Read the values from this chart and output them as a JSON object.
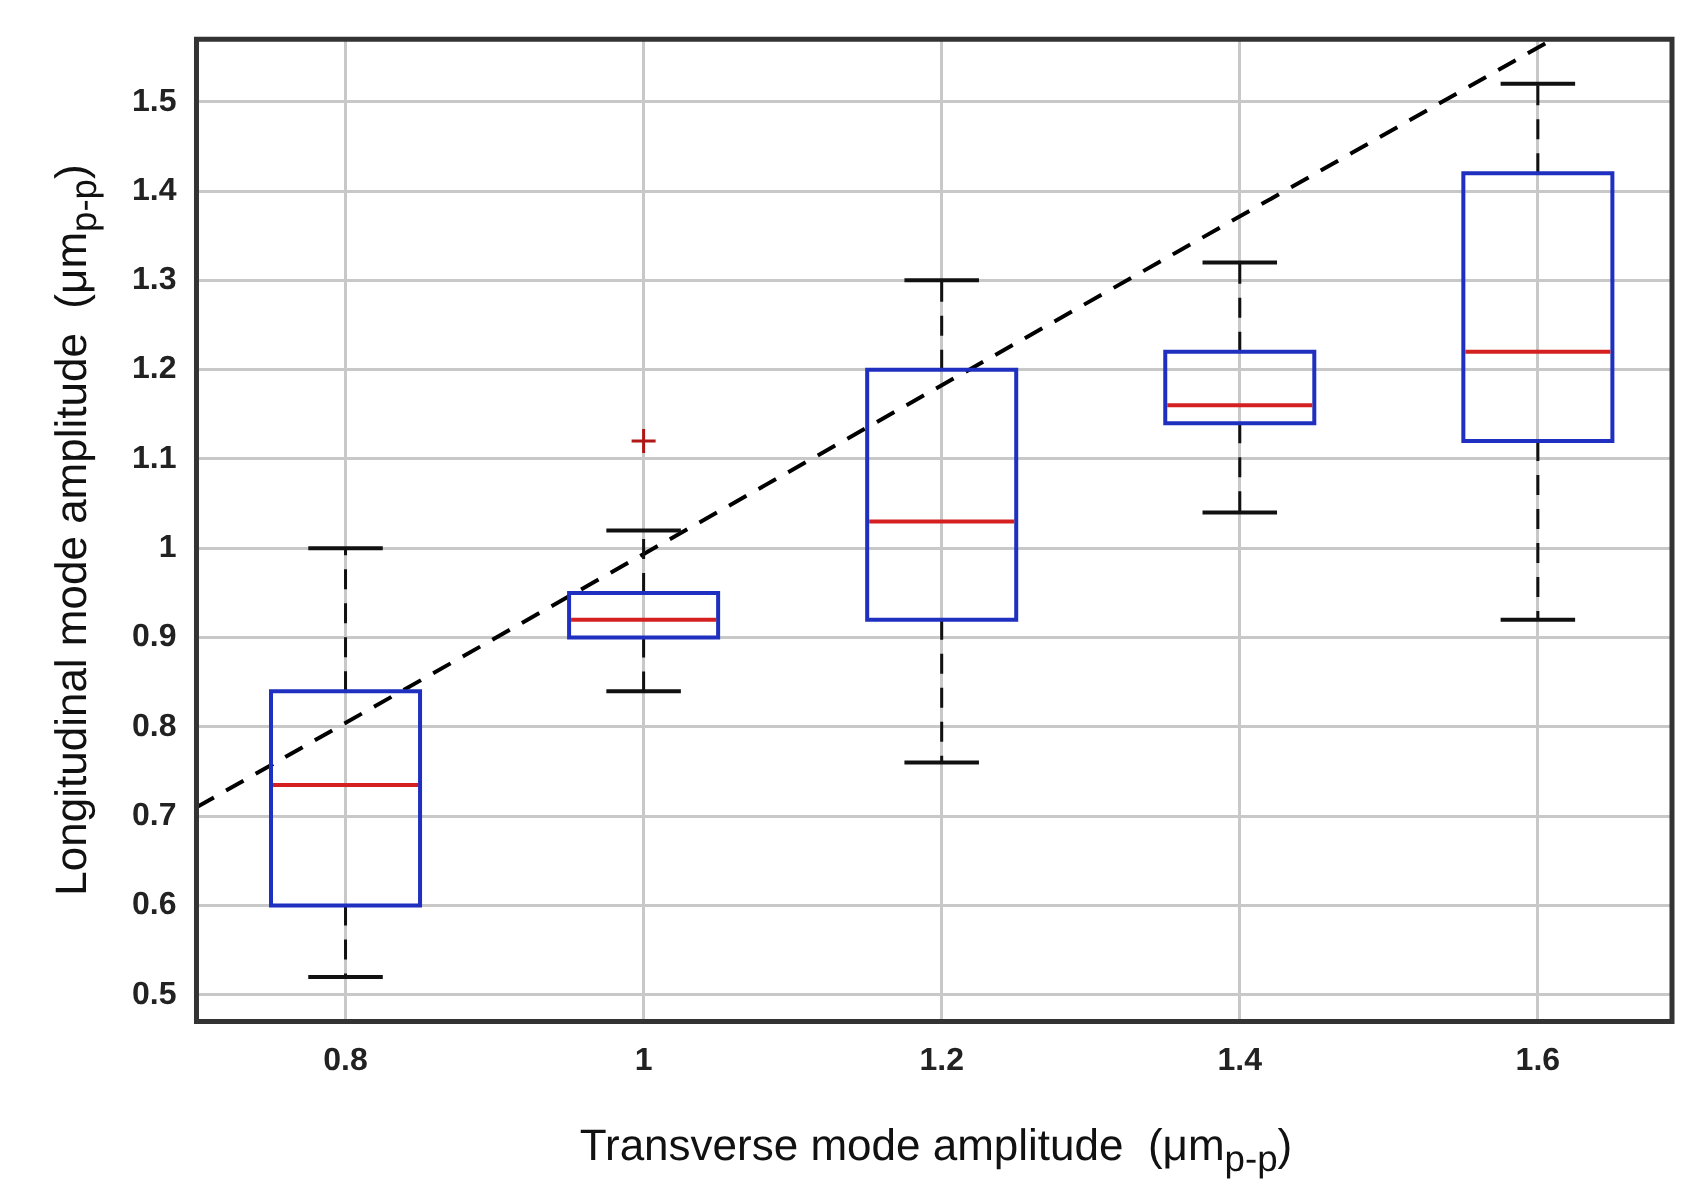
{
  "chart_data": {
    "type": "box",
    "xlabel": "Transverse mode amplitude  (μm$_{p-p}$)",
    "ylabel": "Longitudinal mode amplitude  (μm$_{p-p}$)",
    "x": [
      0.8,
      1,
      1.2,
      1.4,
      1.6
    ],
    "xlim": [
      0.7,
      1.69
    ],
    "xticks": [
      0.8,
      1,
      1.2,
      1.4,
      1.6
    ],
    "ylim": [
      0.47,
      1.57
    ],
    "yticks": [
      0.5,
      0.6,
      0.7,
      0.8,
      0.9,
      1,
      1.1,
      1.2,
      1.3,
      1.4,
      1.5
    ],
    "grid": true,
    "series": [
      {
        "type": "box",
        "color": "#1f2fbf",
        "boxes": [
          {
            "low": 0.52,
            "q1": 0.6,
            "median": 0.735,
            "q3": 0.84,
            "high": 1.0
          },
          {
            "low": 0.84,
            "q1": 0.9,
            "median": 0.92,
            "q3": 0.95,
            "high": 1.02,
            "outliers": [
              1.12
            ]
          },
          {
            "low": 0.76,
            "q1": 0.92,
            "median": 1.03,
            "q3": 1.2,
            "high": 1.3
          },
          {
            "low": 1.04,
            "q1": 1.14,
            "median": 1.16,
            "q3": 1.22,
            "high": 1.32
          },
          {
            "low": 0.92,
            "q1": 1.12,
            "median": 1.22,
            "q3": 1.42,
            "high": 1.52
          }
        ]
      },
      {
        "type": "line",
        "color": "#000000",
        "line_style": "dashed",
        "x": [
          0.7,
          1.61
        ],
        "values": [
          0.71,
          1.57
        ]
      }
    ]
  }
}
